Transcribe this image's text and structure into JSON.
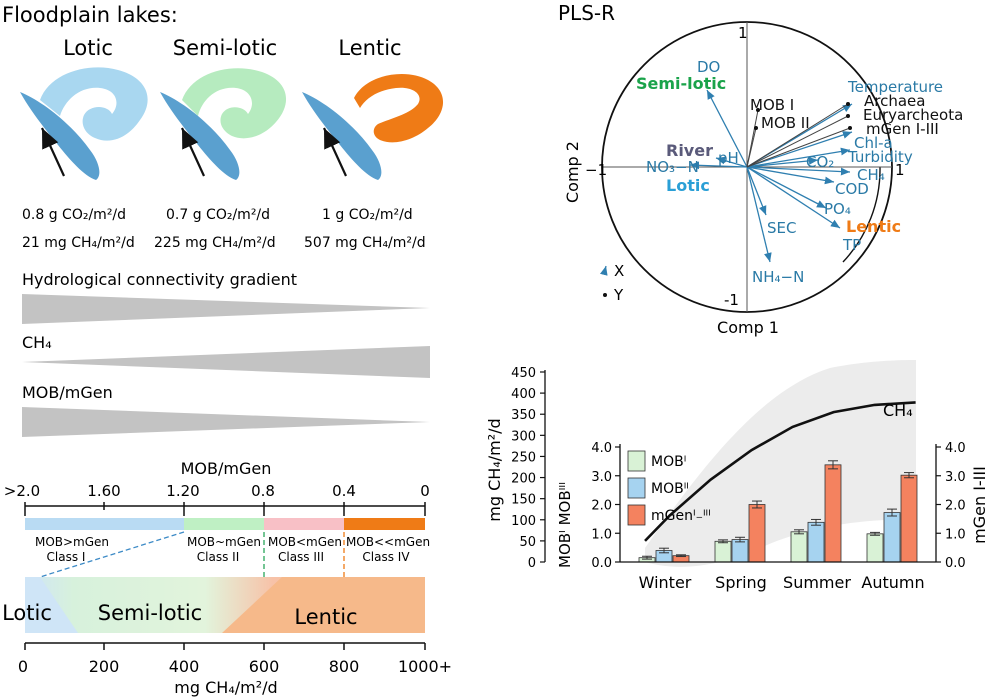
{
  "left_panel": {
    "title": "Floodplain lakes:",
    "lake_types": [
      {
        "name": "Lotic",
        "co2": "0.8 g CO₂/m²/d",
        "ch4": "21 mg CH₄/m²/d",
        "lake_color": "#a9d7f0"
      },
      {
        "name": "Semi-lotic",
        "co2": "0.7 g CO₂/m²/d",
        "ch4": "225 mg CH₄/m²/d",
        "lake_color": "#b6ebbf"
      },
      {
        "name": "Lentic",
        "co2": "1 g CO₂/m²/d",
        "ch4": "507 mg CH₄/m²/d",
        "lake_color": "#ef7b16"
      }
    ],
    "river_color": "#5aa0cf",
    "gradients": {
      "hydro": "Hydrological connectivity gradient",
      "ch4": "CH₄",
      "mob": "MOB/mGen"
    },
    "scale": {
      "title": "MOB/mGen",
      "ticks": [
        ">2.0",
        "1.60",
        "1.20",
        "0.8",
        "0.4",
        "0"
      ],
      "classes": [
        {
          "relation": "MOB>mGen",
          "label": "Class I",
          "color": "#b9dbf3"
        },
        {
          "relation": "MOB~mGen",
          "label": "Class II",
          "color": "#bff0c4"
        },
        {
          "relation": "MOB<mGen",
          "label": "Class III",
          "color": "#f8c0c6"
        },
        {
          "relation": "MOB<<mGen",
          "label": "Class IV",
          "color": "#ef7b16"
        }
      ],
      "zones": [
        "Lotic",
        "Semi-lotic",
        "Lentic"
      ],
      "xticks": [
        "0",
        "200",
        "400",
        "600",
        "800",
        "1000+"
      ],
      "xlabel": "mg CH₄/m²/d"
    }
  },
  "pls": {
    "title": "PLS-R",
    "axis_x": "Comp 1",
    "axis_y": "Comp 2",
    "tick_top": "1",
    "tick_bottom": "-1",
    "tick_left": "−1",
    "tick_right": "1",
    "x_vars": [
      "DO",
      "NO₃−N",
      "pH",
      "CO₂",
      "Temperature",
      "Chl-a",
      "Turbidity",
      "CH₄",
      "COD",
      "PO₄",
      "TP",
      "SEC",
      "NH₄−N"
    ],
    "y_vars": [
      "MOB I",
      "MOB II",
      "Archaea",
      "Euryarcheota",
      "mGen I-III"
    ],
    "groups": [
      {
        "name": "Semi-lotic",
        "color": "#1aa34a"
      },
      {
        "name": "River",
        "color": "#5a5a7a"
      },
      {
        "name": "Lotic",
        "color": "#2a9fd6"
      },
      {
        "name": "Lentic",
        "color": "#ef7b16"
      }
    ],
    "legend": {
      "x": "X",
      "y": "Y"
    }
  },
  "chart_data": {
    "type": "bar",
    "categories": [
      "Winter",
      "Spring",
      "Summer",
      "Autumn"
    ],
    "left_outer_axis": {
      "label": "mg CH₄/m²/d",
      "ticks": [
        0,
        50,
        100,
        150,
        200,
        250,
        300,
        350,
        400,
        450
      ],
      "ylim": [
        0,
        450
      ]
    },
    "left_inner_axis": {
      "label": "MOBᴵ MOBᴵᴵᴵ",
      "ticks": [
        "0.0",
        "1.0",
        "2.0",
        "3.0",
        "4.0"
      ],
      "ylim": [
        0,
        4
      ]
    },
    "right_axis": {
      "label": "mGen I-III",
      "ticks": [
        "0.0",
        "1.0",
        "2.0",
        "3.0",
        "4.0"
      ],
      "ylim": [
        0,
        4
      ]
    },
    "series": [
      {
        "name": "MOB I",
        "color": "#d9f2d6",
        "values": [
          0.15,
          0.72,
          1.05,
          0.98
        ],
        "errors": [
          0.05,
          0.05,
          0.07,
          0.05
        ]
      },
      {
        "name": "MOB II",
        "color": "#a6d3f0",
        "values": [
          0.4,
          0.78,
          1.38,
          1.72
        ],
        "errors": [
          0.08,
          0.08,
          0.1,
          0.12
        ]
      },
      {
        "name": "mGen I-III",
        "color": "#f4825f",
        "values": [
          0.22,
          2.0,
          3.38,
          3.02
        ],
        "errors": [
          0.03,
          0.12,
          0.14,
          0.09
        ]
      }
    ],
    "ch4_curve": {
      "label": "CH₄",
      "x": [
        0.7,
        1.0,
        1.5,
        2.0,
        2.5,
        3.0,
        3.5,
        4.0
      ],
      "y": [
        50,
        110,
        195,
        265,
        320,
        355,
        372,
        378
      ]
    },
    "legend_labels": [
      "MOBᴵ",
      "MOBᴵᴵ",
      "mGenᴵ₋ᴵᴵᴵ"
    ]
  }
}
